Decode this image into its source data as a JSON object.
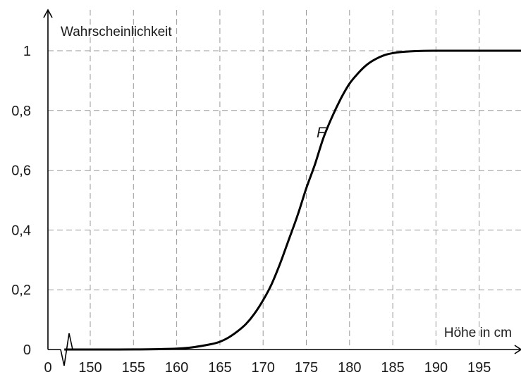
{
  "chart_data": {
    "type": "line",
    "ylabel": "Wahrscheinlichkeit",
    "xlabel": "Höhe in cm",
    "x_axis_origin_label": "0",
    "x_axis_break": true,
    "xlim": [
      145,
      200
    ],
    "ylim": [
      0,
      1
    ],
    "x_ticks": [
      150,
      155,
      160,
      165,
      170,
      175,
      180,
      185,
      190,
      195
    ],
    "x_tick_labels": [
      "150",
      "155",
      "160",
      "165",
      "170",
      "175",
      "180",
      "185",
      "190",
      "195"
    ],
    "y_ticks": [
      0,
      0.2,
      0.4,
      0.6,
      0.8,
      1
    ],
    "y_tick_labels": [
      "0",
      "0,2",
      "0,4",
      "0,6",
      "0,8",
      "1"
    ],
    "grid": true,
    "series": [
      {
        "name": "F",
        "x": [
          147,
          150,
          155,
          160,
          162,
          164,
          165,
          166,
          167,
          168,
          169,
          170,
          171,
          172,
          173,
          174,
          175,
          176,
          177,
          178,
          179,
          180,
          181,
          182,
          183,
          184,
          185,
          186,
          188,
          190,
          195,
          200
        ],
        "y": [
          0,
          0,
          0.0003,
          0.003,
          0.008,
          0.018,
          0.026,
          0.04,
          0.06,
          0.085,
          0.12,
          0.165,
          0.22,
          0.29,
          0.37,
          0.45,
          0.54,
          0.62,
          0.71,
          0.78,
          0.84,
          0.89,
          0.925,
          0.953,
          0.972,
          0.985,
          0.992,
          0.996,
          0.999,
          1,
          1,
          1
        ]
      }
    ]
  }
}
